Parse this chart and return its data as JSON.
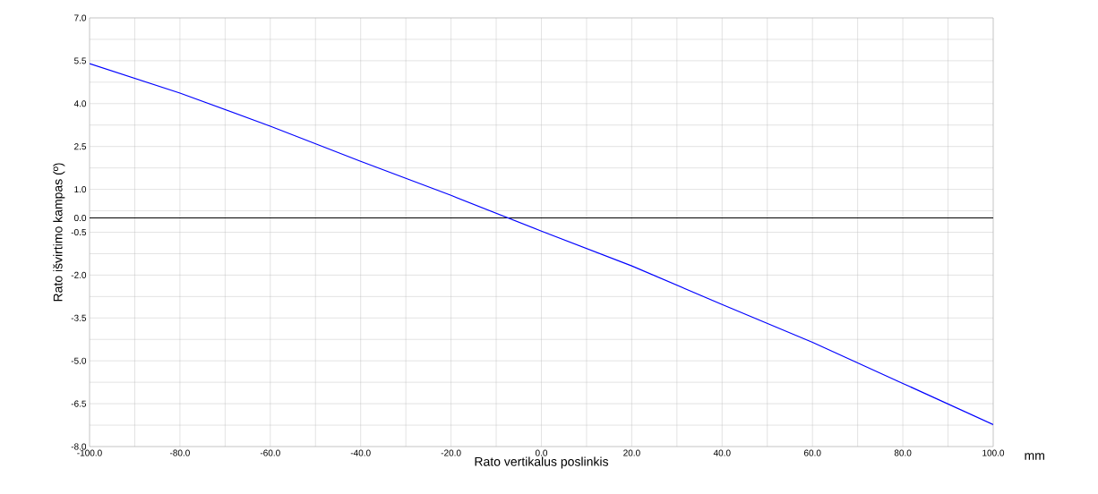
{
  "chart_data": {
    "type": "line",
    "xlabel": "Rato vertikalus poslinkis",
    "ylabel": "Rato išvirtimo kampas (º)",
    "annotations": [
      "mm"
    ],
    "x": [
      -100,
      -80,
      -60,
      -40,
      -20,
      0,
      20,
      40,
      60,
      80,
      100
    ],
    "series": [
      {
        "color": "#0000ff",
        "values": [
          5.4,
          4.37,
          3.21,
          1.98,
          0.79,
          -0.46,
          -1.68,
          -3.03,
          -4.35,
          -5.79,
          -7.23
        ]
      }
    ],
    "xlim": [
      -100,
      100
    ],
    "ylim": [
      -8,
      7
    ],
    "xticks": [
      {
        "value": -100,
        "label": "-100.0"
      },
      {
        "value": -90,
        "label": null
      },
      {
        "value": -80,
        "label": "-80.0"
      },
      {
        "value": -70,
        "label": null
      },
      {
        "value": -60,
        "label": "-60.0"
      },
      {
        "value": -50,
        "label": null
      },
      {
        "value": -40,
        "label": "-40.0"
      },
      {
        "value": -30,
        "label": null
      },
      {
        "value": -20,
        "label": "-20.0"
      },
      {
        "value": -10,
        "label": null
      },
      {
        "value": 0,
        "label": "0.0"
      },
      {
        "value": 10,
        "label": null
      },
      {
        "value": 20,
        "label": "20.0"
      },
      {
        "value": 30,
        "label": null
      },
      {
        "value": 40,
        "label": "40.0"
      },
      {
        "value": 50,
        "label": null
      },
      {
        "value": 60,
        "label": "60.0"
      },
      {
        "value": 70,
        "label": null
      },
      {
        "value": 80,
        "label": "80.0"
      },
      {
        "value": 90,
        "label": null
      },
      {
        "value": 100,
        "label": "100.0"
      }
    ],
    "yticks": [
      {
        "value": -8,
        "label": "-8.0"
      },
      {
        "value": -7.25,
        "label": null
      },
      {
        "value": -6.5,
        "label": "-6.5"
      },
      {
        "value": -5.75,
        "label": null
      },
      {
        "value": -5,
        "label": "-5.0"
      },
      {
        "value": -4.25,
        "label": null
      },
      {
        "value": -3.5,
        "label": "-3.5"
      },
      {
        "value": -2.75,
        "label": null
      },
      {
        "value": -2,
        "label": "-2.0"
      },
      {
        "value": -1.25,
        "label": null
      },
      {
        "value": -0.5,
        "label": "-0.5"
      },
      {
        "value": 0,
        "label": "0.0"
      },
      {
        "value": 0.25,
        "label": null
      },
      {
        "value": 1,
        "label": "1.0"
      },
      {
        "value": 1.75,
        "label": null
      },
      {
        "value": 2.5,
        "label": "2.5"
      },
      {
        "value": 3.25,
        "label": null
      },
      {
        "value": 4,
        "label": "4.0"
      },
      {
        "value": 4.75,
        "label": null
      },
      {
        "value": 5.5,
        "label": "5.5"
      },
      {
        "value": 6.25,
        "label": null
      },
      {
        "value": 7,
        "label": "7.0"
      }
    ],
    "grid": true,
    "ref_lines": [
      {
        "axis": "y",
        "value": 0,
        "color": "#000000"
      }
    ]
  }
}
